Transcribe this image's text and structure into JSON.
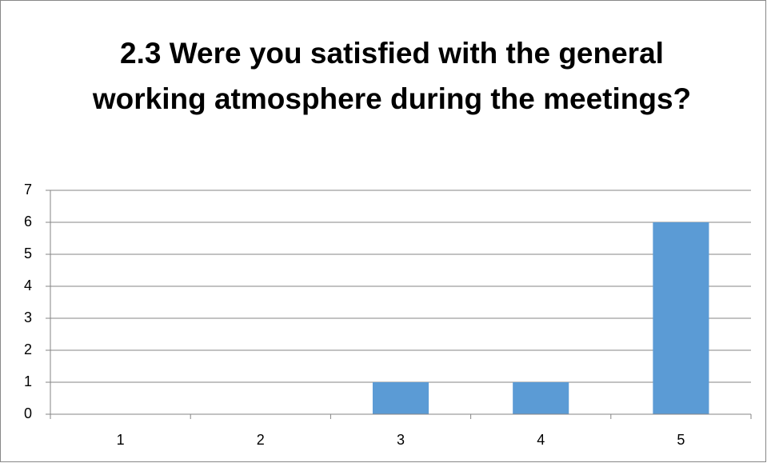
{
  "chart_data": {
    "type": "bar",
    "title": "2.3 Were you satisfied with the general working atmosphere during the meetings?",
    "categories": [
      "1",
      "2",
      "3",
      "4",
      "5"
    ],
    "values": [
      0,
      0,
      1,
      1,
      6
    ],
    "color": "#5b9bd5",
    "ylim": [
      0,
      7
    ],
    "yticks": [
      0,
      1,
      2,
      3,
      4,
      5,
      6,
      7
    ],
    "grid": true
  }
}
